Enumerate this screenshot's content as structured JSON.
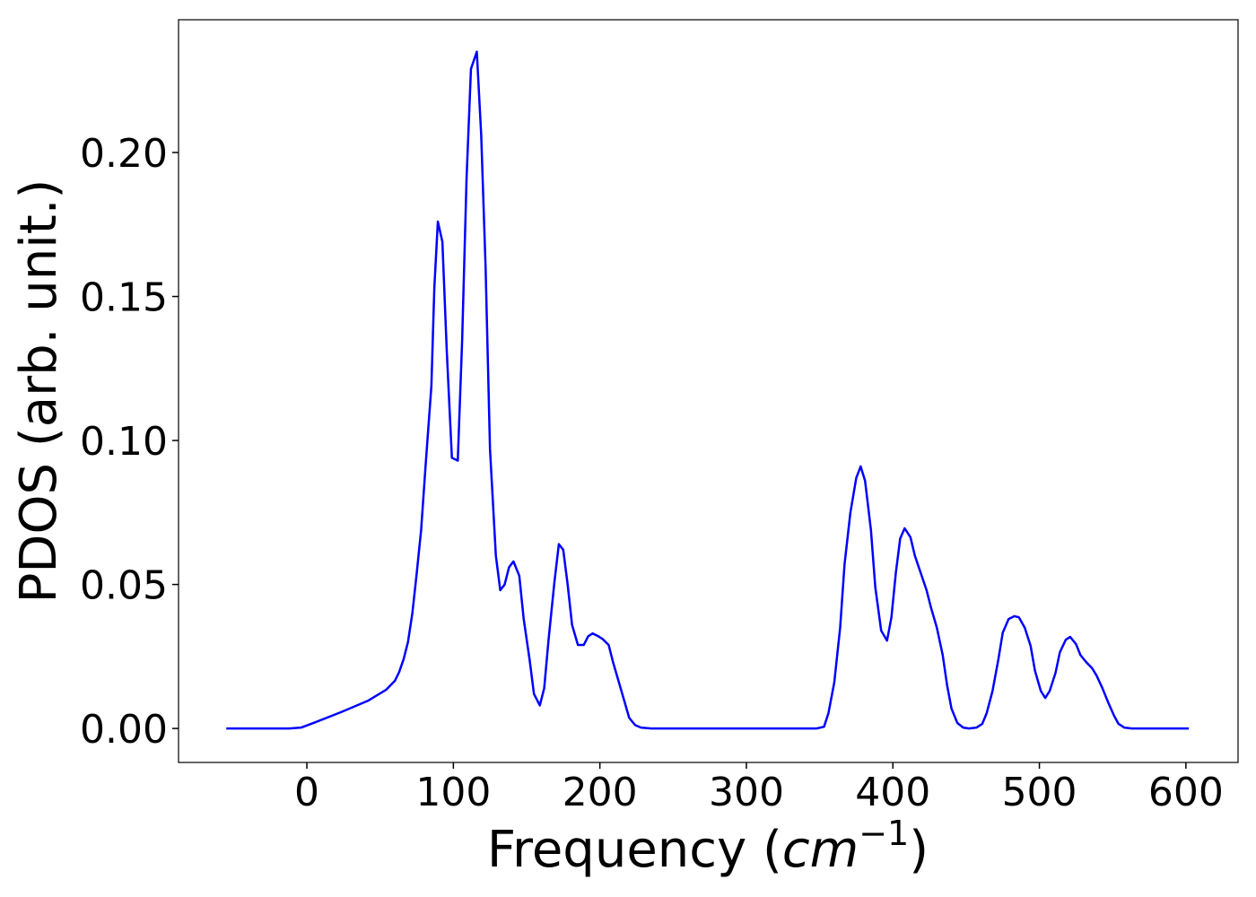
{
  "chart_data": {
    "type": "line",
    "xlabel": [
      "Frequency (",
      "cm",
      "−1",
      ")"
    ],
    "ylabel": "PDOS (arb. unit.)",
    "xlim": [
      -87.6,
      635.6
    ],
    "ylim": [
      -0.0118,
      0.2461
    ],
    "xticks": [
      0,
      100,
      200,
      300,
      400,
      500,
      600
    ],
    "yticks": [
      {
        "value": 0,
        "label": "0.00"
      },
      {
        "value": 0.05,
        "label": "0.05"
      },
      {
        "value": 0.1,
        "label": "0.10"
      },
      {
        "value": 0.15,
        "label": "0.15"
      },
      {
        "value": 0.2,
        "label": "0.20"
      }
    ],
    "grid": false,
    "series": [
      {
        "color": "#0000ff",
        "x": [
          -55,
          -12,
          -4,
          5,
          23,
          42,
          54,
          60,
          63,
          66,
          69,
          72,
          75,
          78,
          81,
          85,
          87,
          89.4,
          92.5,
          95.5,
          99,
          103,
          106,
          109,
          112,
          116,
          119,
          122,
          125,
          129,
          132,
          135,
          138,
          141,
          145,
          148,
          152,
          155,
          159,
          162,
          165,
          169,
          172,
          175,
          178,
          181,
          185,
          189,
          192,
          195,
          199,
          202,
          206,
          209,
          213,
          217,
          220,
          224,
          228,
          235,
          348,
          353,
          356,
          360,
          364,
          367,
          371,
          375,
          378,
          381,
          385,
          388,
          392,
          396,
          399,
          402,
          405,
          408,
          412,
          415,
          419,
          423,
          426,
          430,
          434,
          437,
          440,
          444,
          448,
          452,
          457,
          461,
          464,
          468,
          472,
          475,
          479,
          483,
          486,
          490,
          494,
          497,
          501,
          504,
          507,
          511,
          514,
          518,
          521,
          525,
          528,
          532,
          536,
          539,
          543,
          547,
          551,
          554,
          558,
          563,
          602
        ],
        "values": [
          0,
          0,
          0.0003,
          0.002,
          0.0056,
          0.0097,
          0.0134,
          0.0165,
          0.0196,
          0.024,
          0.03,
          0.04,
          0.054,
          0.069,
          0.091,
          0.119,
          0.153,
          0.176,
          0.169,
          0.131,
          0.094,
          0.093,
          0.135,
          0.191,
          0.229,
          0.235,
          0.206,
          0.16,
          0.097,
          0.06,
          0.048,
          0.05,
          0.056,
          0.058,
          0.053,
          0.038,
          0.024,
          0.012,
          0.008,
          0.014,
          0.031,
          0.051,
          0.064,
          0.062,
          0.05,
          0.036,
          0.029,
          0.029,
          0.032,
          0.033,
          0.032,
          0.031,
          0.029,
          0.023,
          0.016,
          0.009,
          0.0037,
          0.0012,
          0.0003,
          0,
          0,
          0.0006,
          0.0053,
          0.016,
          0.035,
          0.057,
          0.075,
          0.087,
          0.091,
          0.086,
          0.069,
          0.049,
          0.034,
          0.0305,
          0.0386,
          0.054,
          0.066,
          0.0695,
          0.0664,
          0.06,
          0.054,
          0.048,
          0.042,
          0.035,
          0.0255,
          0.015,
          0.0069,
          0.0019,
          0.0003,
          0,
          0.0003,
          0.0016,
          0.0053,
          0.013,
          0.024,
          0.0333,
          0.038,
          0.039,
          0.0386,
          0.035,
          0.0287,
          0.02,
          0.013,
          0.0106,
          0.013,
          0.0193,
          0.0265,
          0.0308,
          0.0318,
          0.0293,
          0.0255,
          0.023,
          0.0209,
          0.0184,
          0.014,
          0.009,
          0.0044,
          0.0016,
          0.0003,
          0,
          0
        ]
      }
    ]
  }
}
